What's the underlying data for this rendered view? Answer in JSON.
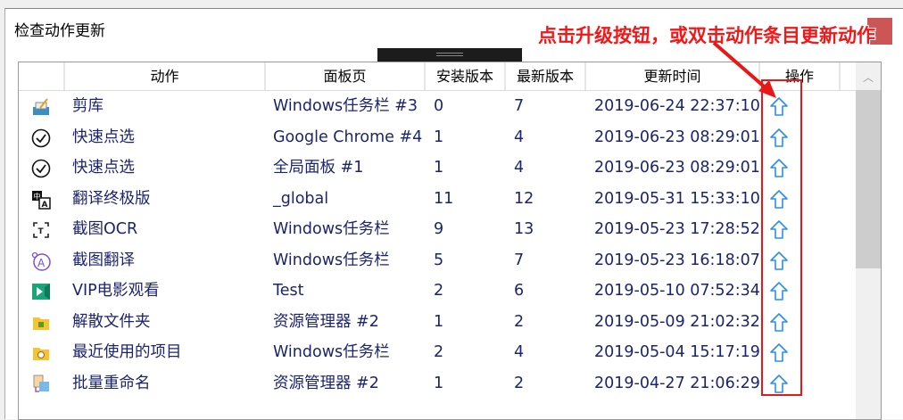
{
  "dialog": {
    "title": "检查动作更新"
  },
  "annotation": {
    "text": "点击升级按钮，或双击动作条目更新动作",
    "color": "#e81818"
  },
  "table": {
    "columns": [
      "",
      "动作",
      "面板页",
      "安装版本",
      "最新版本",
      "更新时间",
      "操作"
    ],
    "rows": [
      {
        "icon": "clipboard-icon",
        "action": "剪库",
        "panel": "Windows任务栏 #3",
        "installed": "0",
        "latest": "7",
        "time": "2019-06-24 22:37:10"
      },
      {
        "icon": "check-circle-icon",
        "action": "快速点选",
        "panel": "Google Chrome #4",
        "installed": "1",
        "latest": "4",
        "time": "2019-06-23 08:29:01"
      },
      {
        "icon": "check-circle-icon",
        "action": "快速点选",
        "panel": "全局面板 #1",
        "installed": "1",
        "latest": "4",
        "time": "2019-06-23 08:29:01"
      },
      {
        "icon": "translate-icon",
        "action": "翻译终极版",
        "panel": "_global",
        "installed": "11",
        "latest": "12",
        "time": "2019-05-31 15:33:10"
      },
      {
        "icon": "ocr-icon",
        "action": "截图OCR",
        "panel": "Windows任务栏",
        "installed": "9",
        "latest": "13",
        "time": "2019-05-23 17:28:52"
      },
      {
        "icon": "translate-a-icon",
        "action": "截图翻译",
        "panel": "Windows任务栏",
        "installed": "5",
        "latest": "7",
        "time": "2019-05-23 16:18:07"
      },
      {
        "icon": "video-icon",
        "action": "VIP电影观看",
        "panel": "Test",
        "installed": "2",
        "latest": "6",
        "time": "2019-05-10 07:52:34"
      },
      {
        "icon": "folder-icon",
        "action": "解散文件夹",
        "panel": "资源管理器 #2",
        "installed": "1",
        "latest": "2",
        "time": "2019-05-09 21:02:32"
      },
      {
        "icon": "folder-clock-icon",
        "action": "最近使用的项目",
        "panel": "Windows任务栏",
        "installed": "2",
        "latest": "4",
        "time": "2019-05-04 15:17:19"
      },
      {
        "icon": "rename-icon",
        "action": "批量重命名",
        "panel": "资源管理器 #2",
        "installed": "1",
        "latest": "2",
        "time": "2019-04-27 21:06:29"
      }
    ]
  }
}
